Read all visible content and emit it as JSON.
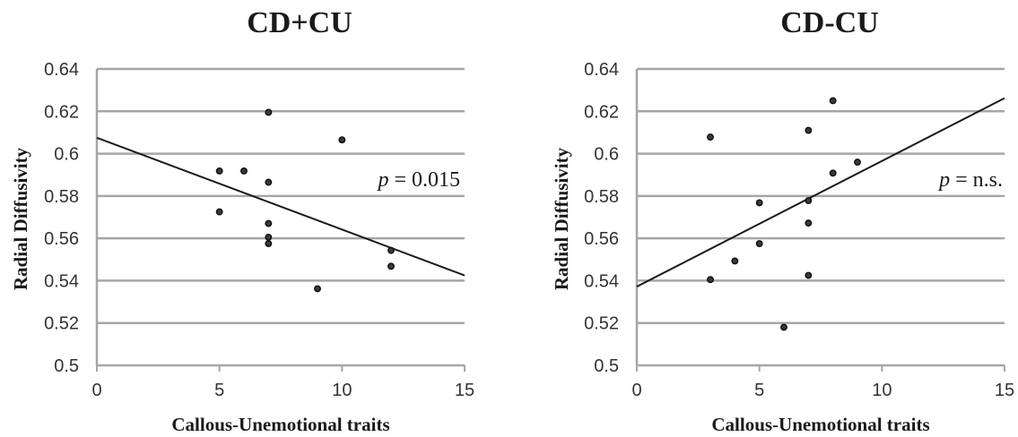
{
  "chart_data": [
    {
      "type": "scatter",
      "title": "CD+CU",
      "xlabel": "Callous-Unemotional traits",
      "ylabel": "Radial Diffusivity",
      "xlim": [
        0,
        15
      ],
      "ylim": [
        0.5,
        0.64
      ],
      "x_ticks": [
        "0",
        "5",
        "10",
        "15"
      ],
      "y_ticks": [
        "0.5",
        "0.52",
        "0.54",
        "0.56",
        "0.58",
        "0.6",
        "0.62",
        "0.64"
      ],
      "grid": true,
      "annotation": {
        "italic": "p",
        "rest": " = 0.015"
      },
      "trendline": {
        "x": [
          0,
          15
        ],
        "y": [
          0.6075,
          0.5425
        ]
      },
      "points": [
        {
          "x": 7,
          "y": 0.6195
        },
        {
          "x": 10,
          "y": 0.6065
        },
        {
          "x": 5,
          "y": 0.5918
        },
        {
          "x": 6,
          "y": 0.5918
        },
        {
          "x": 7,
          "y": 0.5865
        },
        {
          "x": 5,
          "y": 0.5725
        },
        {
          "x": 7,
          "y": 0.567
        },
        {
          "x": 7,
          "y": 0.5605
        },
        {
          "x": 7,
          "y": 0.5575
        },
        {
          "x": 12,
          "y": 0.5543
        },
        {
          "x": 12,
          "y": 0.5468
        },
        {
          "x": 9,
          "y": 0.5362
        }
      ]
    },
    {
      "type": "scatter",
      "title": "CD-CU",
      "xlabel": "Callous-Unemotional traits",
      "ylabel": "Radial Diffusivity",
      "xlim": [
        0,
        15
      ],
      "ylim": [
        0.5,
        0.64
      ],
      "x_ticks": [
        "0",
        "5",
        "10",
        "15"
      ],
      "y_ticks": [
        "0.5",
        "0.52",
        "0.54",
        "0.56",
        "0.58",
        "0.6",
        "0.62",
        "0.64"
      ],
      "grid": true,
      "annotation": {
        "italic": "p",
        "rest": " = n.s."
      },
      "trendline": {
        "x": [
          0,
          15
        ],
        "y": [
          0.5372,
          0.6262
        ]
      },
      "points": [
        {
          "x": 8,
          "y": 0.625
        },
        {
          "x": 7,
          "y": 0.611
        },
        {
          "x": 3,
          "y": 0.6078
        },
        {
          "x": 9,
          "y": 0.596
        },
        {
          "x": 8,
          "y": 0.5908
        },
        {
          "x": 7,
          "y": 0.5778
        },
        {
          "x": 5,
          "y": 0.5768
        },
        {
          "x": 7,
          "y": 0.5672
        },
        {
          "x": 5,
          "y": 0.5575
        },
        {
          "x": 4,
          "y": 0.5493
        },
        {
          "x": 7,
          "y": 0.5425
        },
        {
          "x": 3,
          "y": 0.5405
        },
        {
          "x": 6,
          "y": 0.518
        }
      ]
    }
  ]
}
